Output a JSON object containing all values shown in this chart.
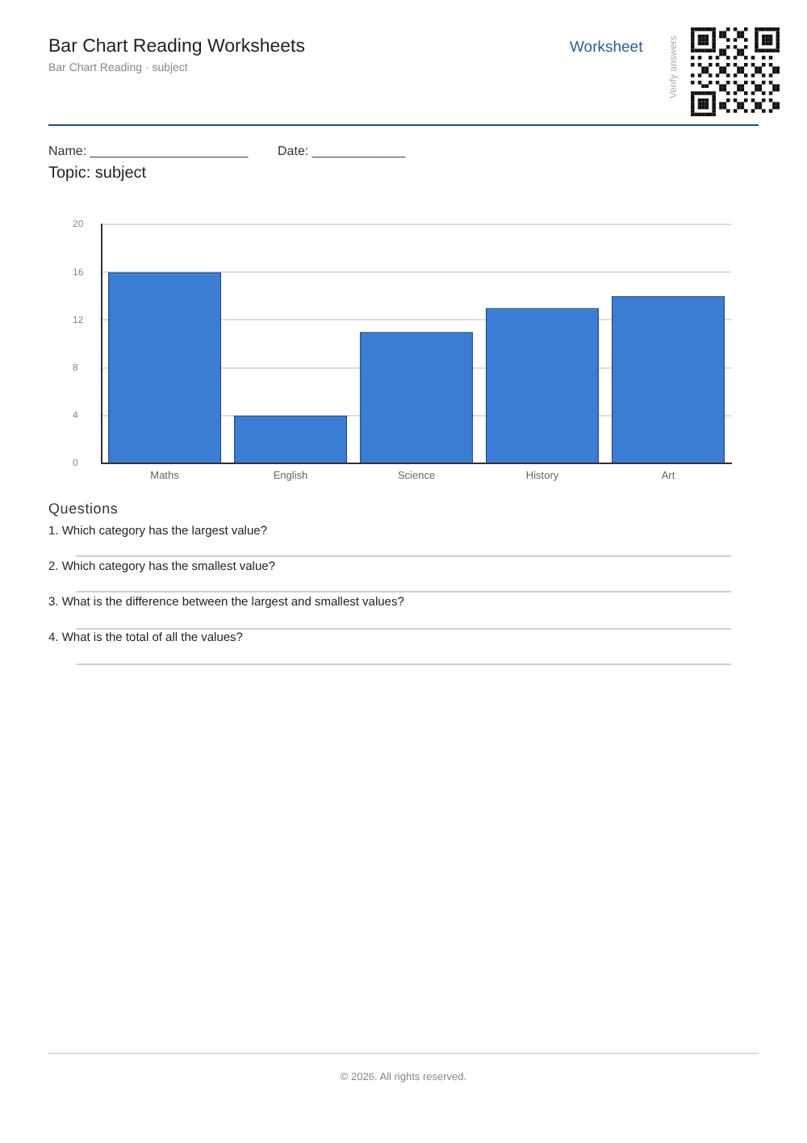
{
  "chart_data": {
    "type": "bar",
    "title": "Bar Chart Reading Worksheets",
    "subtitle": "Bar Chart Reading · subject",
    "categories": [
      "Maths",
      "English",
      "Science",
      "History",
      "Art"
    ],
    "values": [
      16,
      4,
      11,
      13,
      14
    ],
    "color": "#3b7dd4",
    "ylim": [
      0,
      20
    ],
    "yticks": [
      0,
      4,
      8,
      12,
      16,
      20
    ],
    "grid": "y",
    "legend": false,
    "annotations": [
      "Worksheet",
      "Verify answers",
      "Name: ______________________",
      "Date: _____________",
      "Topic: subject",
      "Questions",
      "1. Which category has the largest value?",
      "2. Which category has the smallest value?",
      "3. What is the difference between the largest and smallest values?",
      "4. What is the total of all the values?",
      "© 2026. All rights reserved."
    ]
  }
}
